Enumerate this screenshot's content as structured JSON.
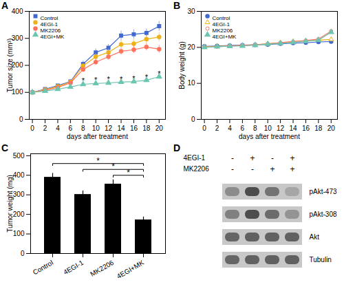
{
  "chart_data": [
    {
      "type": "line",
      "title": "A",
      "x_label": "days after treatment",
      "y_label": "Tumor size (mm³)",
      "x": [
        0,
        2,
        4,
        6,
        8,
        10,
        12,
        14,
        16,
        18,
        20
      ],
      "series": [
        {
          "name": "Control",
          "marker": "square",
          "values": [
            100,
            112,
            125,
            140,
            205,
            248,
            265,
            310,
            315,
            320,
            345
          ],
          "errors": [
            4,
            5,
            6,
            7,
            12,
            13,
            13,
            17,
            17,
            15,
            18
          ]
        },
        {
          "name": "4EGI-1",
          "marker": "circle",
          "values": [
            100,
            110,
            122,
            138,
            198,
            232,
            248,
            278,
            280,
            297,
            305
          ],
          "errors": [
            4,
            5,
            6,
            7,
            11,
            13,
            13,
            15,
            15,
            15,
            17
          ]
        },
        {
          "name": "MK2206",
          "marker": "circle",
          "values": [
            100,
            108,
            118,
            135,
            185,
            212,
            232,
            252,
            258,
            268,
            260
          ],
          "errors": [
            4,
            5,
            6,
            7,
            10,
            11,
            12,
            14,
            14,
            14,
            15
          ]
        },
        {
          "name": "4EGI+MK",
          "marker": "triangle",
          "values": [
            100,
            105,
            112,
            120,
            130,
            133,
            135,
            138,
            140,
            145,
            158
          ],
          "errors": [
            4,
            4,
            5,
            6,
            7,
            7,
            7,
            8,
            8,
            8,
            9
          ]
        }
      ],
      "xlim": [
        -0.5,
        21
      ],
      "xticks": [
        0,
        2,
        4,
        6,
        8,
        10,
        12,
        14,
        16,
        18,
        20
      ],
      "ylim": [
        0,
        400
      ],
      "yticks": [
        0,
        100,
        200,
        300,
        400
      ],
      "legend": "upper left",
      "annotations": [
        {
          "text": "*",
          "x": 8,
          "y": 133
        },
        {
          "text": "*",
          "x": 10,
          "y": 136
        },
        {
          "text": "*",
          "x": 12,
          "y": 138
        },
        {
          "text": "*",
          "x": 14,
          "y": 140
        },
        {
          "text": "*",
          "x": 16,
          "y": 142
        },
        {
          "text": "*",
          "x": 18,
          "y": 146
        },
        {
          "text": "*",
          "x": 20,
          "y": 158
        }
      ]
    },
    {
      "type": "line",
      "title": "B",
      "x_label": "days after treatment",
      "y_label": "Body weight (g)",
      "x": [
        0,
        2,
        4,
        6,
        8,
        10,
        12,
        14,
        16,
        18,
        20
      ],
      "series": [
        {
          "name": "Control",
          "marker": "circle",
          "values": [
            20.3,
            20.4,
            20.5,
            20.6,
            20.7,
            20.8,
            21.0,
            21.2,
            21.3,
            21.5,
            21.6
          ],
          "errors": [
            0.25,
            0.25,
            0.25,
            0.25,
            0.25,
            0.25,
            0.25,
            0.25,
            0.25,
            0.25,
            0.25
          ]
        },
        {
          "name": "4EGI-1",
          "marker": "triangle-open",
          "values": [
            20.2,
            20.3,
            20.4,
            20.5,
            20.7,
            21.0,
            21.3,
            21.6,
            21.8,
            22.0,
            22.2
          ],
          "errors": [
            0.25,
            0.25,
            0.25,
            0.25,
            0.25,
            0.25,
            0.25,
            0.25,
            0.25,
            0.25,
            0.25
          ]
        },
        {
          "name": "MK2206",
          "marker": "circle-open",
          "values": [
            20.1,
            20.2,
            20.4,
            20.5,
            20.7,
            21.0,
            21.3,
            21.6,
            21.9,
            22.3,
            24.5
          ],
          "errors": [
            0.25,
            0.25,
            0.25,
            0.25,
            0.25,
            0.25,
            0.25,
            0.25,
            0.25,
            0.25,
            0.4
          ]
        },
        {
          "name": "4EGI+MK",
          "marker": "triangle",
          "values": [
            20.0,
            20.2,
            20.3,
            20.4,
            20.6,
            20.9,
            21.1,
            21.4,
            21.7,
            22.0,
            24.2
          ],
          "errors": [
            0.25,
            0.25,
            0.25,
            0.25,
            0.25,
            0.25,
            0.25,
            0.25,
            0.25,
            0.25,
            0.4
          ]
        }
      ],
      "xlim": [
        -0.5,
        21
      ],
      "xticks": [
        0,
        2,
        4,
        6,
        8,
        10,
        12,
        14,
        16,
        18,
        20
      ],
      "ylim": [
        0,
        30
      ],
      "yticks": [
        0,
        10,
        20,
        30
      ],
      "legend": "upper left"
    },
    {
      "type": "bar",
      "title": "C",
      "y_label": "Tumor weight (mg)",
      "categories": [
        "Control",
        "4EGI-1",
        "MK2206",
        "4EGI+MK"
      ],
      "values": [
        390,
        302,
        355,
        172
      ],
      "errors": [
        20,
        18,
        22,
        15
      ],
      "ylim": [
        0,
        510
      ],
      "yticks": [
        0,
        100,
        200,
        300,
        400,
        500
      ],
      "brackets": [
        {
          "from": "Control",
          "to": "4EGI+MK",
          "y": 450,
          "y_top": 460,
          "text": "*"
        },
        {
          "from": "4EGI-1",
          "to": "4EGI+MK",
          "y": 420,
          "y_top": 430,
          "text": "*"
        },
        {
          "from": "MK2206",
          "to": "4EGI+MK",
          "y": 390,
          "y_top": 400,
          "text": "*"
        }
      ]
    },
    {
      "type": "heatmap",
      "title": "D",
      "header_rows": [
        {
          "name": "4EGI-1",
          "labels": [
            "-",
            "+",
            "-",
            "+"
          ]
        },
        {
          "name": "MK2206",
          "labels": [
            "-",
            "-",
            "+",
            "+"
          ]
        }
      ],
      "rows": [
        "pAkt-473",
        "pAkt-308",
        "Akt",
        "Tubulin"
      ],
      "cells": [
        [
          0.55,
          0.3,
          0.45,
          0.65
        ],
        [
          0.5,
          0.3,
          0.42,
          0.58
        ],
        [
          0.4,
          0.38,
          0.38,
          0.38
        ],
        [
          0.4,
          0.38,
          0.38,
          0.38
        ]
      ],
      "zlim": [
        0,
        1
      ]
    }
  ]
}
